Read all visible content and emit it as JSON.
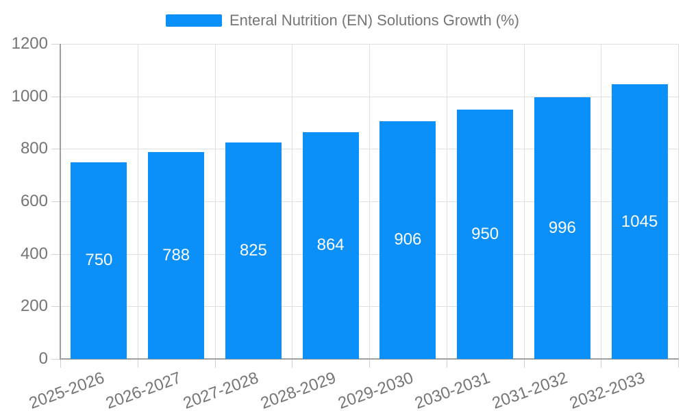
{
  "chart_data": {
    "type": "bar",
    "title": "Enteral Nutrition (EN) Solutions Growth (%)",
    "legend": {
      "label": "Enteral Nutrition (EN) Solutions Growth (%)",
      "position": "top"
    },
    "categories": [
      "2025-2026",
      "2026-2027",
      "2027-2028",
      "2028-2029",
      "2029-2030",
      "2030-2031",
      "2031-2032",
      "2032-2033"
    ],
    "values": [
      750,
      788,
      825,
      864,
      906,
      950,
      996,
      1045
    ],
    "xlabel": "",
    "ylabel": "",
    "ylim": [
      0,
      1200
    ],
    "yticks": [
      0,
      200,
      400,
      600,
      800,
      1000,
      1200
    ],
    "grid": true,
    "value_labels_inside_bars": true,
    "xtick_rotation_deg": -20,
    "colors": {
      "bar": "#0a90f8",
      "value_label": "#ffffff",
      "grid_line": "#e0e0e0",
      "tick_mark": "#d0d0d0",
      "axis_line": "#9e9e9e",
      "tick_label": "#757575",
      "legend_text": "#757575",
      "background": "#ffffff"
    }
  }
}
